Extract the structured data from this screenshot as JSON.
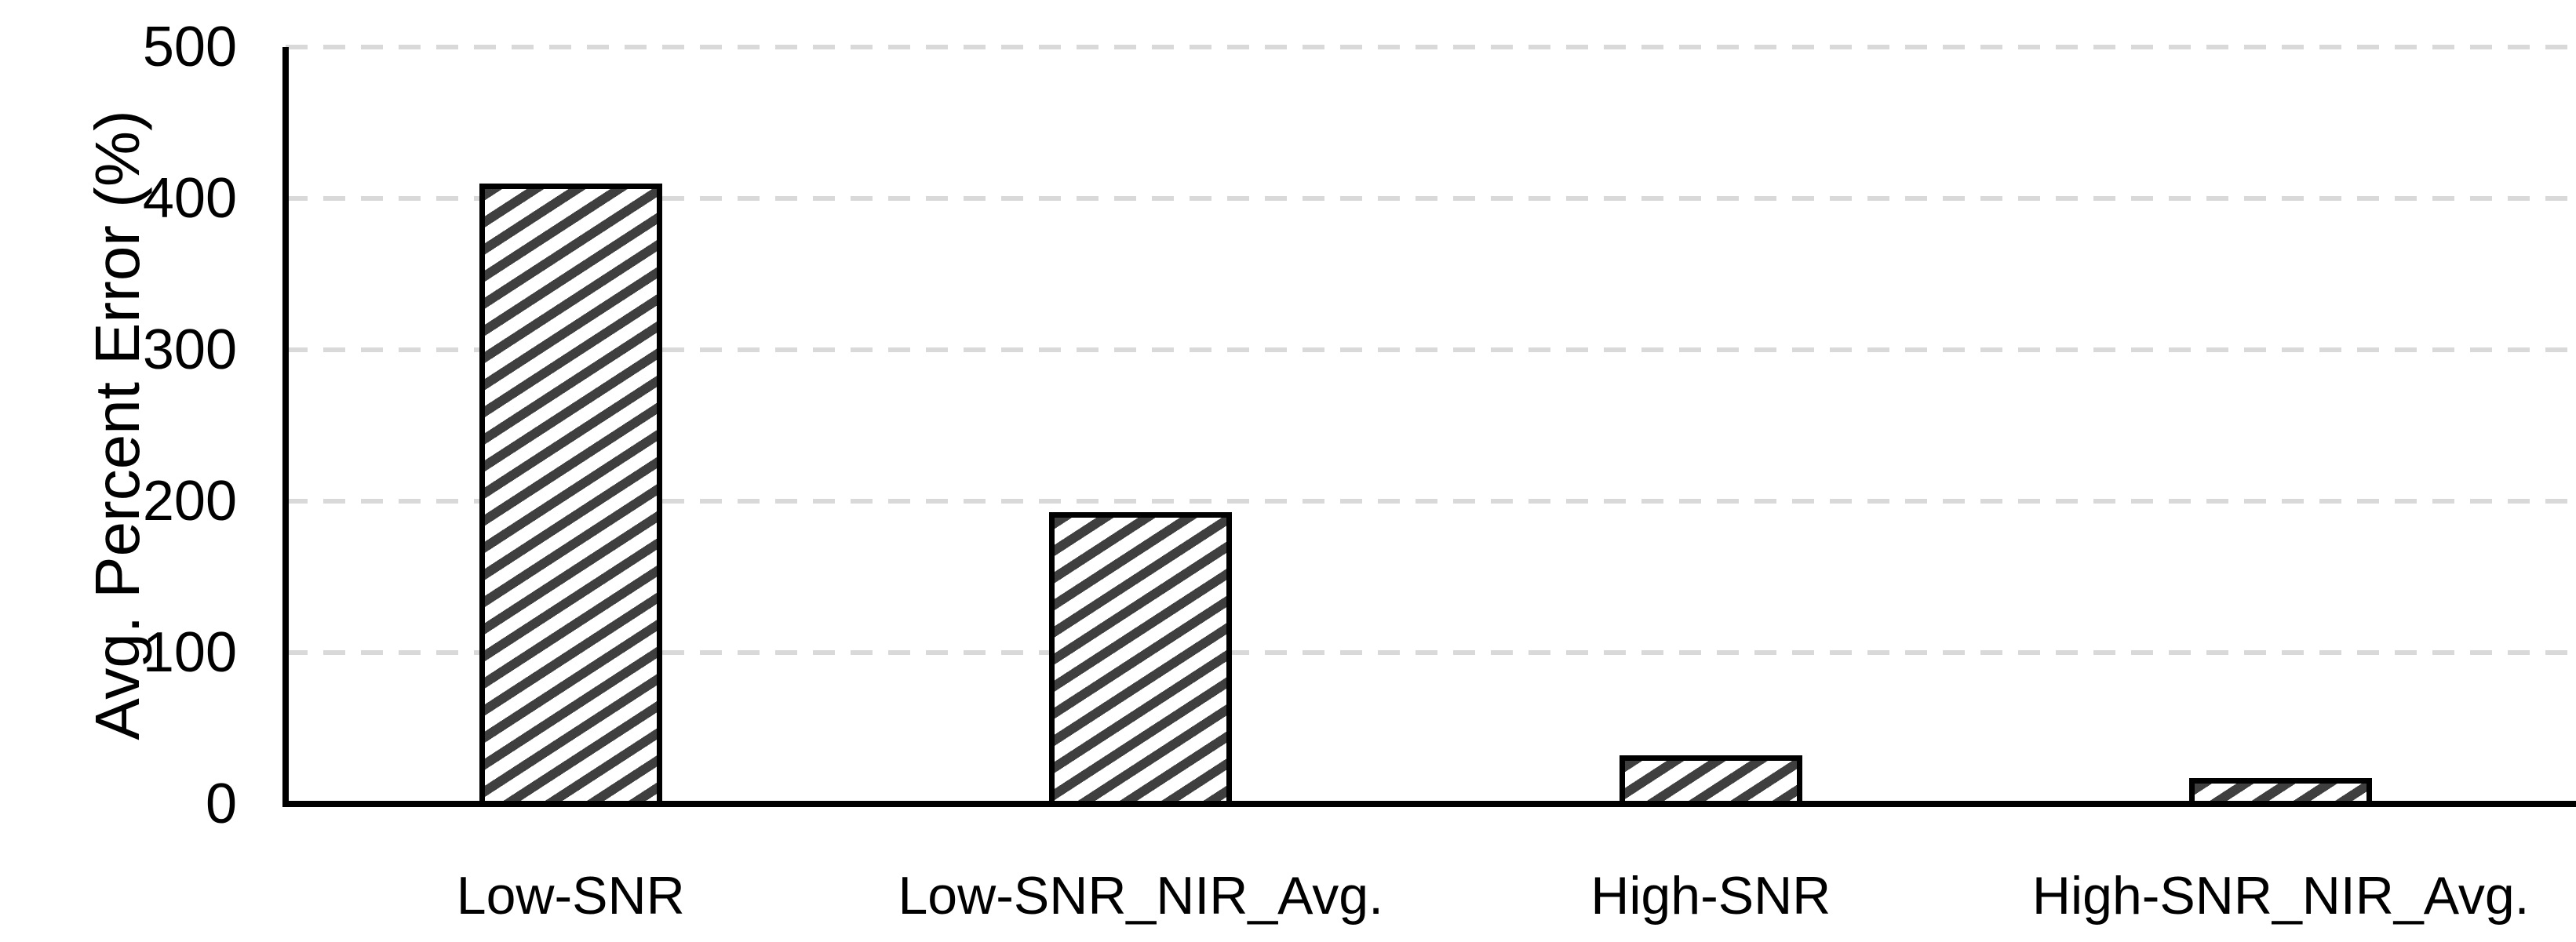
{
  "chart_data": {
    "type": "bar",
    "title": "",
    "xlabel": "",
    "ylabel": "Avg. Percent Error (%)",
    "categories": [
      "Low-SNR",
      "Low-SNR_NIR_Avg.",
      "High-SNR",
      "High-SNR_NIR_Avg."
    ],
    "values": [
      410,
      193,
      32,
      17
    ],
    "ylim": [
      0,
      500
    ],
    "yticks": [
      0,
      100,
      200,
      300,
      400,
      500
    ],
    "grid": "horizontal-dashed",
    "legend_position": "none",
    "bar_style": {
      "fill": "#ffffff",
      "hatch": "diagonal-forward",
      "hatch_color": "#3f3f3f",
      "border_color": "#000000"
    },
    "colors": {
      "axis": "#000000",
      "gridline": "#d9d9d9",
      "text": "#000000",
      "background": "#ffffff"
    }
  }
}
